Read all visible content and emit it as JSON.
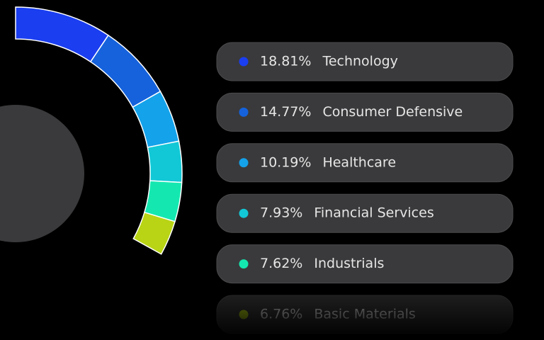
{
  "chart_data": {
    "type": "donut",
    "categories": [
      "Technology",
      "Consumer Defensive",
      "Healthcare",
      "Financial Services",
      "Industrials",
      "Basic Materials"
    ],
    "values": [
      18.81,
      14.77,
      10.19,
      7.93,
      7.62,
      6.76
    ],
    "value_labels": [
      "18.81%",
      "14.77%",
      "10.19%",
      "7.93%",
      "7.62%",
      "6.76%"
    ],
    "colors": [
      "#1a3ef0",
      "#1562dc",
      "#14a2ea",
      "#12c8d6",
      "#14e8b0",
      "#b8d414"
    ]
  }
}
